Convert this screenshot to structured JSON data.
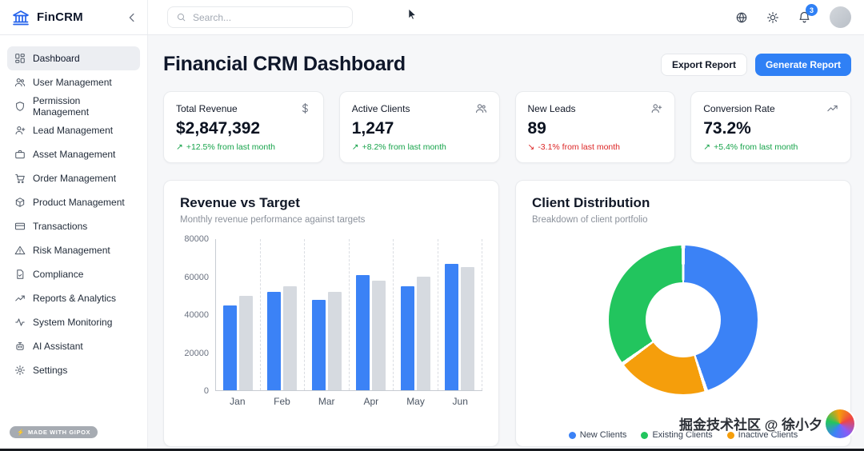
{
  "topbar": {
    "brand": "FinCRM",
    "search_placeholder": "Search...",
    "notification_count": "3"
  },
  "sidebar": {
    "items": [
      {
        "label": "Dashboard",
        "icon": "dashboard",
        "active": true
      },
      {
        "label": "User Management",
        "icon": "users",
        "active": false
      },
      {
        "label": "Permission Management",
        "icon": "shield",
        "active": false
      },
      {
        "label": "Lead Management",
        "icon": "user-plus",
        "active": false
      },
      {
        "label": "Asset Management",
        "icon": "briefcase",
        "active": false
      },
      {
        "label": "Order Management",
        "icon": "cart",
        "active": false
      },
      {
        "label": "Product Management",
        "icon": "box",
        "active": false
      },
      {
        "label": "Transactions",
        "icon": "credit-card",
        "active": false
      },
      {
        "label": "Risk Management",
        "icon": "alert-triangle",
        "active": false
      },
      {
        "label": "Compliance",
        "icon": "file-check",
        "active": false
      },
      {
        "label": "Reports & Analytics",
        "icon": "trending-up",
        "active": false
      },
      {
        "label": "System Monitoring",
        "icon": "activity",
        "active": false
      },
      {
        "label": "AI Assistant",
        "icon": "bot",
        "active": false
      },
      {
        "label": "Settings",
        "icon": "gear",
        "active": false
      }
    ],
    "made_with": "MADE WITH GIPOX"
  },
  "page": {
    "title": "Financial CRM Dashboard",
    "export_button": "Export Report",
    "generate_button": "Generate Report"
  },
  "stats": [
    {
      "label": "Total Revenue",
      "value": "$2,847,392",
      "delta": "+12.5% from last month",
      "trend": "up",
      "icon": "dollar"
    },
    {
      "label": "Active Clients",
      "value": "1,247",
      "delta": "+8.2% from last month",
      "trend": "up",
      "icon": "users"
    },
    {
      "label": "New Leads",
      "value": "89",
      "delta": "-3.1% from last month",
      "trend": "down",
      "icon": "user-plus"
    },
    {
      "label": "Conversion Rate",
      "value": "73.2%",
      "delta": "+5.4% from last month",
      "trend": "up",
      "icon": "trending-up"
    }
  ],
  "chart_data": [
    {
      "type": "bar",
      "title": "Revenue vs Target",
      "subtitle": "Monthly revenue performance against targets",
      "categories": [
        "Jan",
        "Feb",
        "Mar",
        "Apr",
        "May",
        "Jun"
      ],
      "series": [
        {
          "name": "Revenue",
          "color": "#3b82f6",
          "values": [
            45000,
            52000,
            48000,
            61000,
            55000,
            67000
          ]
        },
        {
          "name": "Target",
          "color": "#d6dae0",
          "values": [
            50000,
            55000,
            52000,
            58000,
            60000,
            65000
          ]
        }
      ],
      "ylim": [
        0,
        80000
      ],
      "yticks": [
        0,
        20000,
        40000,
        60000,
        80000
      ],
      "grid": "dashed-vertical",
      "legend_position": "none"
    },
    {
      "type": "pie",
      "title": "Client Distribution",
      "subtitle": "Breakdown of client portfolio",
      "donut": true,
      "slices": [
        {
          "label": "New Clients",
          "value": 45,
          "color": "#3b82f6",
          "legend_order": 0
        },
        {
          "label": "Inactive Clients",
          "value": 20,
          "color": "#f59e0b",
          "legend_order": 2
        },
        {
          "label": "Existing Clients",
          "value": 35,
          "color": "#22c55e",
          "legend_order": 1
        }
      ],
      "legend_position": "bottom"
    }
  ],
  "watermark": "掘金技术社区 @ 徐小夕"
}
